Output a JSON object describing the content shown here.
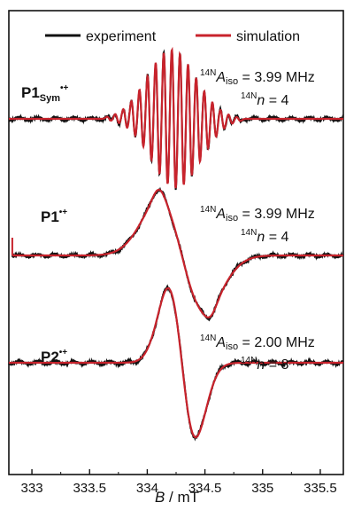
{
  "chart_data": {
    "type": "line",
    "xlabel_symbol": "B",
    "xlabel_unit": " / mT",
    "xlim": [
      332.8,
      335.7
    ],
    "xticks": [
      333,
      333.5,
      334,
      334.5,
      335,
      335.5
    ],
    "xtick_labels": [
      "333",
      "333.5",
      "334",
      "334.5",
      "335",
      "335.5"
    ],
    "colors": {
      "experiment": "#111111",
      "simulation": "#c8232c"
    },
    "legend": {
      "placement": "top",
      "entries": [
        {
          "label": "experiment",
          "color": "#111111"
        },
        {
          "label": "simulation",
          "color": "#c8232c"
        }
      ]
    },
    "panels": [
      {
        "id": "p1sym",
        "label_main": "P1",
        "label_sub": "Sym",
        "label_sup": "•+",
        "iso_sup": "14N",
        "iso_text": "A",
        "iso_sub": "iso",
        "iso_value": " = 3.99 MHz",
        "n_sup": "14N",
        "n_text": "n",
        "n_value": " = 4"
      },
      {
        "id": "p1",
        "label_main": "P1",
        "label_sub": "",
        "label_sup": "•+",
        "iso_sup": "14N",
        "iso_text": "A",
        "iso_sub": "iso",
        "iso_value": " = 3.99 MHz",
        "n_sup": "14N",
        "n_text": "n",
        "n_value": " = 4"
      },
      {
        "id": "p2",
        "label_main": "P2",
        "label_sub": "",
        "label_sup": "•+",
        "iso_sup": "14N",
        "iso_text": "A",
        "iso_sub": "iso",
        "iso_value": " = 2.00 MHz",
        "n_sup": "14N",
        "n_text": "n",
        "n_value": " = 8"
      }
    ]
  }
}
